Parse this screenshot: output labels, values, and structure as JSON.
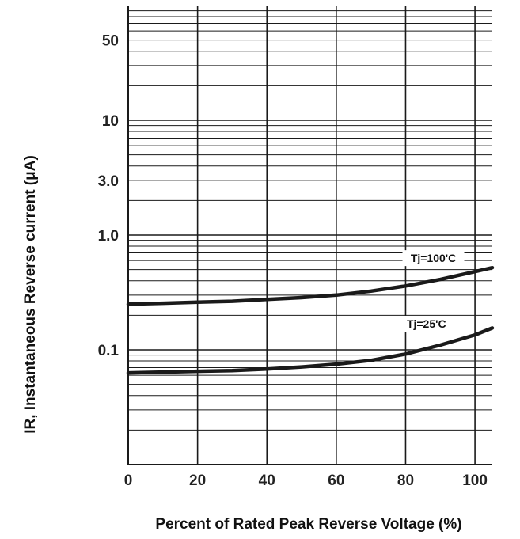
{
  "chart_data": {
    "type": "line",
    "title": "",
    "xlabel": "Percent of Rated Peak Reverse Voltage (%)",
    "ylabel": "IR, Instantaneous Reverse current (μA)",
    "xlim": [
      0,
      105
    ],
    "ylim": [
      0.01,
      100
    ],
    "y_scale": "log",
    "grid": true,
    "x_ticks": [
      {
        "value": 0,
        "label": "0"
      },
      {
        "value": 20,
        "label": "20"
      },
      {
        "value": 40,
        "label": "40"
      },
      {
        "value": 60,
        "label": "60"
      },
      {
        "value": 80,
        "label": "80"
      },
      {
        "value": 100,
        "label": "100"
      }
    ],
    "y_ticks": [
      {
        "value": 0.1,
        "label": "0.1"
      },
      {
        "value": 1.0,
        "label": "1.0"
      },
      {
        "value": 3.0,
        "label": "3.0"
      },
      {
        "value": 10,
        "label": "10"
      },
      {
        "value": 50,
        "label": "50"
      }
    ],
    "series": [
      {
        "name": "Tj=100'C",
        "x": [
          0,
          10,
          20,
          30,
          40,
          50,
          60,
          70,
          80,
          90,
          100,
          105
        ],
        "values": [
          0.25,
          0.255,
          0.26,
          0.265,
          0.275,
          0.285,
          0.3,
          0.325,
          0.36,
          0.41,
          0.48,
          0.52
        ]
      },
      {
        "name": "Tj=25'C",
        "x": [
          0,
          10,
          20,
          30,
          40,
          50,
          60,
          70,
          80,
          90,
          100,
          105
        ],
        "values": [
          0.063,
          0.064,
          0.065,
          0.066,
          0.068,
          0.071,
          0.075,
          0.081,
          0.092,
          0.11,
          0.135,
          0.155
        ]
      }
    ],
    "colors": {
      "line": "#1a1a1a",
      "grid": "#1a1a1a",
      "text": "#222222"
    }
  }
}
